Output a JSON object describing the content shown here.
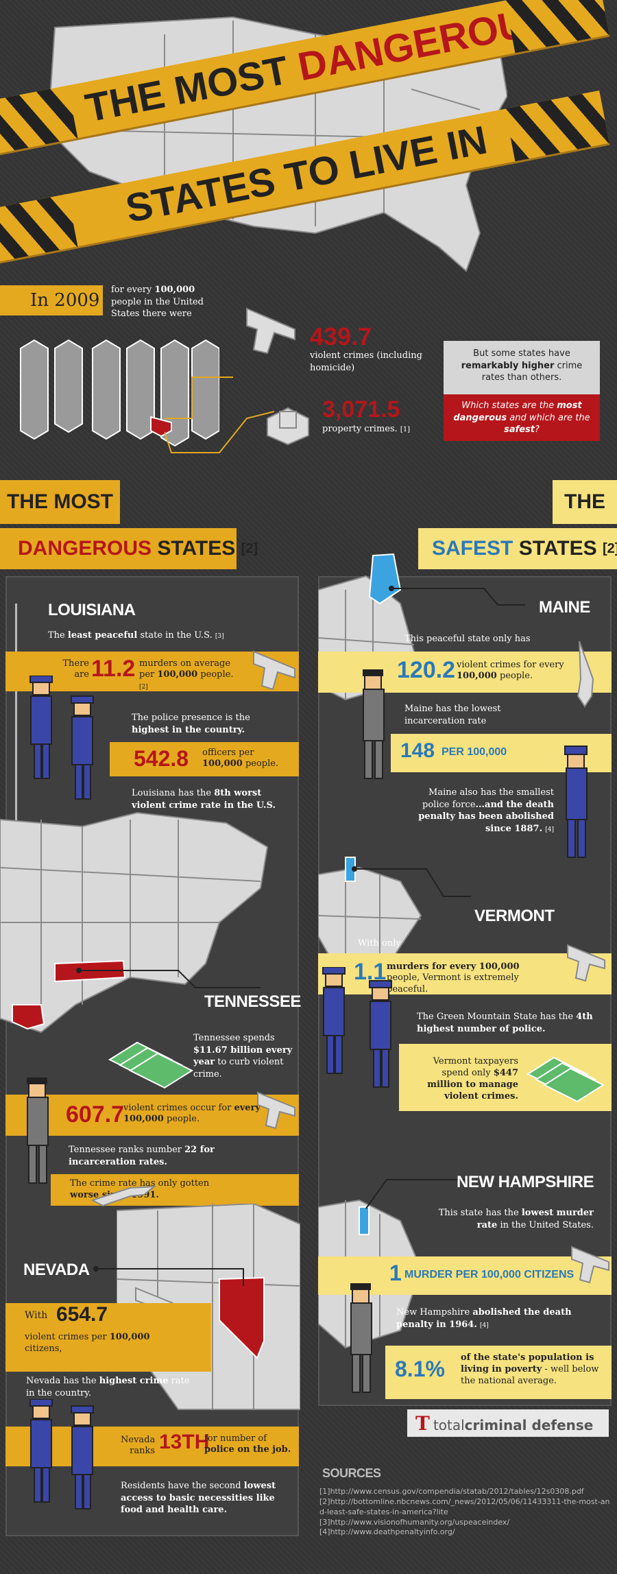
{
  "title": {
    "part1": "THE MOST",
    "part2": "DANGEROUS",
    "part3": "STATES TO LIVE IN"
  },
  "intro": {
    "year": "In 2009",
    "lead_pre": "for every ",
    "lead_num": "100,000",
    "lead_post": " people in the United States there were",
    "violent_value": "439.7",
    "violent_label": "violent crimes (including homicide)",
    "property_value": "3,071.5",
    "property_label": "property crimes.",
    "property_ref": "[1]",
    "callout_text_1": "But some states have",
    "callout_bold": "remarkably higher",
    "callout_text_2": "crime rates than others.",
    "question": "Which states are the most dangerous and which are the safest?",
    "question_parts": {
      "a": "Which states are the ",
      "b": "most ",
      "c": "dangerous",
      "d": " and which are the ",
      "e": "safest",
      "f": "?"
    }
  },
  "dangerous": {
    "hdr1": "THE MOST",
    "hdr2a": "DANGEROUS",
    "hdr2b": " STATES",
    "hdr_ref": "[2]",
    "louisiana": {
      "name": "LOUISIANA",
      "fact1_pre": "The ",
      "fact1_bold": "least peaceful",
      "fact1_post": " state in the U.S.",
      "fact1_ref": "[3]",
      "band1_pre": "There are",
      "band1_num": "11.2",
      "band1_post": "murders on average per ",
      "band1_bold": "100,000",
      "band1_tail": " people.",
      "band1_ref": "[2]",
      "fact2_pre": "The police presence is the ",
      "fact2_bold": "highest in the country.",
      "band2_num": "542.8",
      "band2_post": "officers per ",
      "band2_bold": "100,000",
      "band2_tail": " people.",
      "fact3_pre": "Louisiana has the ",
      "fact3_bold": "8th worst violent crime rate in the U.S."
    },
    "tennessee": {
      "name": "TENNESSEE",
      "fact1_pre": "Tennessee spends ",
      "fact1_bold": "$11.67 billion every year",
      "fact1_post": " to curb violent crime.",
      "band_num": "607.7",
      "band_post": "violent crimes occur for ",
      "band_bold": "every 100,000",
      "band_tail": " people.",
      "fact2_pre": "Tennessee ranks number ",
      "fact2_bold": "22 for incarceration rates.",
      "band2_pre": "The crime rate has only gotten ",
      "band2_bold": "worse since 1991."
    },
    "nevada": {
      "name": "NEVADA",
      "with": "With",
      "band_num": "654.7",
      "band_post": "violent crimes per ",
      "band_bold": "100,000",
      "band_tail": " citizens,",
      "fact1_pre": "Nevada has the ",
      "fact1_bold": "highest crime",
      "fact1_post": " rate in the country.",
      "band2_pre": "Nevada ranks",
      "band2_num": "13TH",
      "band2_post": "for number of ",
      "band2_bold": "police on the job.",
      "fact2_pre": "Residents have the second ",
      "fact2_bold": "lowest access to basic necessities like food and health care."
    }
  },
  "safest": {
    "hdr1": "THE",
    "hdr2a": "SAFEST",
    "hdr2b": " STATES",
    "hdr_ref": "[2]",
    "maine": {
      "name": "MAINE",
      "fact1": "This peaceful state only has",
      "band1_num": "120.2",
      "band1_post": "violent crimes for every ",
      "band1_bold": "100,000",
      "band1_tail": " people.",
      "fact2": "Maine has the lowest incarceration rate",
      "band2_num": "148",
      "band2_post": "PER 100,000",
      "fact3_pre": "Maine also has the smallest police force",
      "fact3_bold": "...and the death penalty has been abolished since 1887.",
      "fact3_ref": "[4]"
    },
    "vermont": {
      "name": "VERMONT",
      "with_only": "With only",
      "band_num": "1.1",
      "band_bold": "murders for every 100,000",
      "band_post": " people, Vermont is extremely peaceful.",
      "fact1_pre": "The Green Mountain State has the ",
      "fact1_bold": "4th highest number of police.",
      "band2_pre": "Vermont taxpayers spend only ",
      "band2_bold": "$447 million to manage violent crimes."
    },
    "new_hampshire": {
      "name": "NEW HAMPSHIRE",
      "fact1_pre": "This state has the ",
      "fact1_bold": "lowest murder rate",
      "fact1_post": " in the United States.",
      "band1_num": "1",
      "band1_post": "MURDER PER 100,000 CITIZENS",
      "fact2_pre": "New Hampshire ",
      "fact2_bold": "abolished the death penalty in 1964.",
      "fact2_ref": "[4]",
      "band2_num": "8.1%",
      "band2_bold": "of the state's population is living in poverty",
      "band2_post": " - well below the national average."
    }
  },
  "brand": {
    "t": "T",
    "name_a": "total",
    "name_b": "criminal defense"
  },
  "sources": {
    "title": "SOURCES",
    "items": [
      "[1]http://www.census.gov/compendia/statab/2012/tables/12s0308.pdf",
      "[2]http://bottomline.nbcnews.com/_news/2012/05/06/11433311-the-most-and-least-safe-states-in-america?lite",
      "[3]http://www.visionofhumanity.org/uspeaceindex/",
      "[4]http://www.deathpenaltyinfo.org/"
    ]
  },
  "colors": {
    "gold": "#e5a91f",
    "red": "#b5161b",
    "blue": "#2a79b9",
    "yellow": "#f6e27f",
    "bg": "#343434"
  }
}
